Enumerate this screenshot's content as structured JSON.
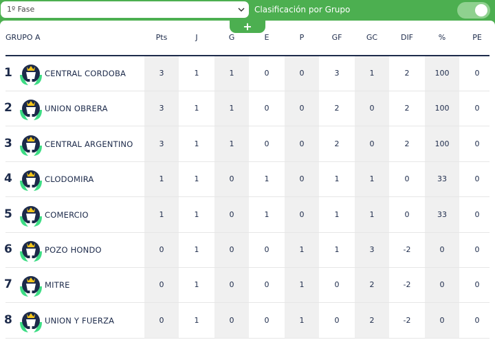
{
  "topbar": {
    "phase_value": "1º Fase",
    "classification_label": "Clasificación por Grupo",
    "add_label": "+",
    "toggle_on": true
  },
  "table": {
    "group_title": "GRUPO A",
    "columns": [
      "Pts",
      "J",
      "G",
      "E",
      "P",
      "GF",
      "GC",
      "DIF",
      "%",
      "PE"
    ],
    "rows": [
      {
        "pos": "1",
        "team": "CENTRAL CORDOBA",
        "stats": [
          "3",
          "1",
          "1",
          "0",
          "0",
          "3",
          "1",
          "2",
          "100",
          "0"
        ]
      },
      {
        "pos": "2",
        "team": "UNION OBRERA",
        "stats": [
          "3",
          "1",
          "1",
          "0",
          "0",
          "2",
          "0",
          "2",
          "100",
          "0"
        ]
      },
      {
        "pos": "3",
        "team": "CENTRAL ARGENTINO",
        "stats": [
          "3",
          "1",
          "1",
          "0",
          "0",
          "2",
          "0",
          "2",
          "100",
          "0"
        ]
      },
      {
        "pos": "4",
        "team": "CLODOMIRA",
        "stats": [
          "1",
          "1",
          "0",
          "1",
          "0",
          "1",
          "1",
          "0",
          "33",
          "0"
        ]
      },
      {
        "pos": "5",
        "team": "COMERCIO",
        "stats": [
          "1",
          "1",
          "0",
          "1",
          "0",
          "1",
          "1",
          "0",
          "33",
          "0"
        ]
      },
      {
        "pos": "6",
        "team": "POZO HONDO",
        "stats": [
          "0",
          "1",
          "0",
          "0",
          "1",
          "1",
          "3",
          "-2",
          "0",
          "0"
        ]
      },
      {
        "pos": "7",
        "team": "MITRE",
        "stats": [
          "0",
          "1",
          "0",
          "0",
          "1",
          "0",
          "2",
          "-2",
          "0",
          "0"
        ]
      },
      {
        "pos": "8",
        "team": "UNION Y FUERZA",
        "stats": [
          "0",
          "1",
          "0",
          "0",
          "1",
          "0",
          "2",
          "-2",
          "0",
          "0"
        ]
      }
    ]
  },
  "colors": {
    "brand_green": "#4caf50",
    "text_navy": "#1c2a4a",
    "badge_navy": "#1c2a4a",
    "badge_green": "#3ddc84",
    "crown_gold": "#f5c518"
  },
  "icons": {
    "team_badge": "trophy-badge-icon",
    "dropdown": "chevron-down-icon"
  }
}
